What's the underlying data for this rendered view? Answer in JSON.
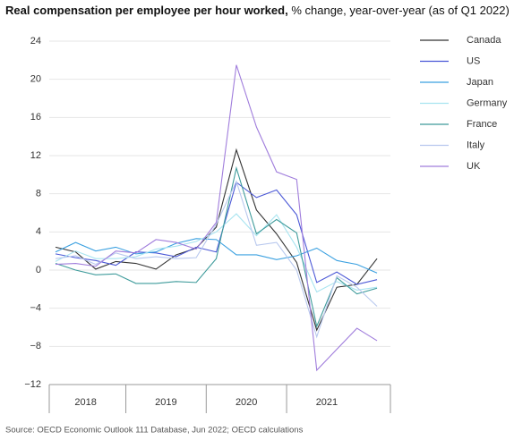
{
  "chart_data": {
    "type": "line",
    "title": "Real compensation per employee per hour worked,",
    "subtitle": "% change, year-over-year (as of Q1 2022)",
    "source": "Source: OECD Economic Outlook 111 Database, Jun 2022; OECD calculations",
    "categories": [
      null,
      "2018",
      null,
      null,
      null,
      "2019",
      null,
      null,
      null,
      "2020",
      null,
      null,
      null,
      "2021",
      null,
      null,
      null
    ],
    "ylim": [
      -12,
      24
    ],
    "yticks": [
      {
        "value": -12,
        "label": "−12"
      },
      {
        "value": -8,
        "label": "−8"
      },
      {
        "value": -4,
        "label": "−4"
      },
      0,
      4,
      8,
      12,
      16,
      20,
      24
    ],
    "grid": true,
    "legend": "right",
    "series": [
      {
        "name": "Canada",
        "color": "#333333",
        "values": [
          2.4,
          1.9,
          0.1,
          0.9,
          0.7,
          0.1,
          1.6,
          2.3,
          4.5,
          12.6,
          6.3,
          3.8,
          0.8,
          -6.3,
          -1.8,
          -1.5,
          1.2
        ]
      },
      {
        "name": "US",
        "color": "#4a57d6",
        "values": [
          1.7,
          1.3,
          1.0,
          0.5,
          1.9,
          1.8,
          1.4,
          2.4,
          1.9,
          9.2,
          7.6,
          8.4,
          5.8,
          -1.3,
          -0.2,
          -1.5,
          -1.0
        ]
      },
      {
        "name": "Japan",
        "color": "#3aa0e0",
        "values": [
          1.9,
          2.9,
          2.0,
          2.4,
          1.7,
          1.9,
          2.8,
          3.3,
          3.2,
          1.6,
          1.6,
          1.1,
          1.5,
          2.3,
          1.0,
          0.6,
          -0.3
        ]
      },
      {
        "name": "Germany",
        "color": "#a8e4f0",
        "values": [
          0.9,
          2.0,
          1.2,
          1.2,
          1.4,
          2.2,
          2.5,
          3.0,
          4.0,
          5.9,
          3.6,
          5.8,
          2.4,
          -2.3,
          -1.2,
          -2.1,
          -1.8
        ]
      },
      {
        "name": "France",
        "color": "#3e9b9b",
        "values": [
          0.7,
          0.0,
          -0.5,
          -0.4,
          -1.4,
          -1.4,
          -1.2,
          -1.3,
          1.2,
          10.7,
          3.8,
          5.3,
          3.9,
          -5.9,
          -0.8,
          -2.5,
          -1.9
        ]
      },
      {
        "name": "Italy",
        "color": "#b8c8ee",
        "values": [
          1.2,
          1.5,
          0.6,
          1.8,
          1.2,
          1.4,
          1.2,
          1.3,
          4.8,
          9.3,
          2.6,
          2.9,
          0.0,
          -7.0,
          -0.6,
          -1.8,
          -3.8
        ]
      },
      {
        "name": "UK",
        "color": "#a07ddc",
        "values": [
          0.6,
          0.7,
          0.4,
          2.0,
          1.8,
          3.2,
          2.9,
          2.2,
          5.0,
          21.5,
          15.0,
          10.3,
          9.5,
          -10.5,
          -8.3,
          -6.1,
          -7.4
        ]
      }
    ]
  }
}
